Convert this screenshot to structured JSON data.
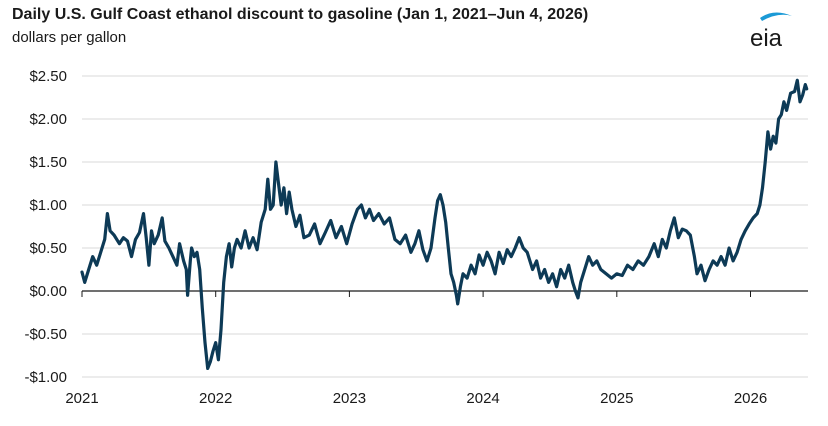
{
  "header": {
    "title": "Daily U.S. Gulf Coast ethanol discount to gasoline (Jan 1, 2021–Jun 4, 2026)",
    "subtitle": "dollars per gallon",
    "logo_text": "eia"
  },
  "colors": {
    "line": "#0d3a56",
    "grid": "#d9d9d9",
    "axis": "#1a1a1a",
    "logo_swoosh": "#1b9ad6"
  },
  "chart_data": {
    "type": "line",
    "title": "Daily U.S. Gulf Coast ethanol discount to gasoline (Jan 1, 2021–Jun 4, 2026)",
    "ylabel": "dollars per gallon",
    "xlabel": "",
    "xlim": [
      2021.0,
      2026.43
    ],
    "ylim": [
      -1.0,
      2.5
    ],
    "x_ticks": [
      2021,
      2022,
      2023,
      2024,
      2025,
      2026
    ],
    "x_tick_labels": [
      "2021",
      "2022",
      "2023",
      "2024",
      "2025",
      "2026"
    ],
    "y_ticks": [
      2.5,
      2.0,
      1.5,
      1.0,
      0.5,
      0.0,
      -0.5,
      -1.0
    ],
    "y_tick_labels": [
      "$2.50",
      "$2.00",
      "$1.50",
      "$1.00",
      "$0.50",
      "$0.00",
      "-$0.50",
      "-$1.00"
    ],
    "grid": "horizontal",
    "series": [
      {
        "points": [
          [
            2021.0,
            0.22
          ],
          [
            2021.02,
            0.1
          ],
          [
            2021.05,
            0.25
          ],
          [
            2021.08,
            0.4
          ],
          [
            2021.11,
            0.3
          ],
          [
            2021.14,
            0.45
          ],
          [
            2021.17,
            0.6
          ],
          [
            2021.19,
            0.9
          ],
          [
            2021.21,
            0.7
          ],
          [
            2021.24,
            0.65
          ],
          [
            2021.28,
            0.55
          ],
          [
            2021.31,
            0.62
          ],
          [
            2021.34,
            0.58
          ],
          [
            2021.37,
            0.4
          ],
          [
            2021.4,
            0.6
          ],
          [
            2021.43,
            0.68
          ],
          [
            2021.46,
            0.9
          ],
          [
            2021.48,
            0.62
          ],
          [
            2021.5,
            0.3
          ],
          [
            2021.52,
            0.7
          ],
          [
            2021.54,
            0.55
          ],
          [
            2021.57,
            0.65
          ],
          [
            2021.6,
            0.85
          ],
          [
            2021.62,
            0.58
          ],
          [
            2021.65,
            0.5
          ],
          [
            2021.68,
            0.4
          ],
          [
            2021.71,
            0.3
          ],
          [
            2021.73,
            0.55
          ],
          [
            2021.76,
            0.35
          ],
          [
            2021.78,
            0.25
          ],
          [
            2021.79,
            -0.05
          ],
          [
            2021.81,
            0.35
          ],
          [
            2021.82,
            0.5
          ],
          [
            2021.84,
            0.4
          ],
          [
            2021.86,
            0.45
          ],
          [
            2021.88,
            0.25
          ],
          [
            2021.9,
            -0.2
          ],
          [
            2021.92,
            -0.6
          ],
          [
            2021.94,
            -0.9
          ],
          [
            2021.96,
            -0.82
          ],
          [
            2021.98,
            -0.7
          ],
          [
            2022.0,
            -0.6
          ],
          [
            2022.02,
            -0.8
          ],
          [
            2022.04,
            -0.45
          ],
          [
            2022.06,
            0.1
          ],
          [
            2022.08,
            0.4
          ],
          [
            2022.1,
            0.55
          ],
          [
            2022.12,
            0.28
          ],
          [
            2022.14,
            0.5
          ],
          [
            2022.16,
            0.6
          ],
          [
            2022.19,
            0.5
          ],
          [
            2022.22,
            0.7
          ],
          [
            2022.25,
            0.5
          ],
          [
            2022.28,
            0.62
          ],
          [
            2022.31,
            0.48
          ],
          [
            2022.34,
            0.8
          ],
          [
            2022.37,
            0.95
          ],
          [
            2022.39,
            1.3
          ],
          [
            2022.41,
            0.95
          ],
          [
            2022.43,
            1.0
          ],
          [
            2022.45,
            1.5
          ],
          [
            2022.47,
            1.25
          ],
          [
            2022.49,
            1.0
          ],
          [
            2022.51,
            1.2
          ],
          [
            2022.53,
            0.9
          ],
          [
            2022.55,
            1.15
          ],
          [
            2022.57,
            0.95
          ],
          [
            2022.6,
            0.75
          ],
          [
            2022.63,
            0.88
          ],
          [
            2022.66,
            0.62
          ],
          [
            2022.7,
            0.65
          ],
          [
            2022.74,
            0.78
          ],
          [
            2022.78,
            0.55
          ],
          [
            2022.82,
            0.68
          ],
          [
            2022.86,
            0.82
          ],
          [
            2022.9,
            0.62
          ],
          [
            2022.94,
            0.75
          ],
          [
            2022.98,
            0.55
          ],
          [
            2023.02,
            0.78
          ],
          [
            2023.06,
            0.95
          ],
          [
            2023.09,
            1.0
          ],
          [
            2023.12,
            0.85
          ],
          [
            2023.15,
            0.95
          ],
          [
            2023.18,
            0.82
          ],
          [
            2023.22,
            0.9
          ],
          [
            2023.26,
            0.78
          ],
          [
            2023.3,
            0.85
          ],
          [
            2023.34,
            0.6
          ],
          [
            2023.38,
            0.55
          ],
          [
            2023.42,
            0.65
          ],
          [
            2023.46,
            0.45
          ],
          [
            2023.49,
            0.55
          ],
          [
            2023.52,
            0.7
          ],
          [
            2023.55,
            0.48
          ],
          [
            2023.58,
            0.35
          ],
          [
            2023.61,
            0.5
          ],
          [
            2023.64,
            0.85
          ],
          [
            2023.66,
            1.05
          ],
          [
            2023.68,
            1.12
          ],
          [
            2023.7,
            1.0
          ],
          [
            2023.72,
            0.8
          ],
          [
            2023.74,
            0.5
          ],
          [
            2023.76,
            0.2
          ],
          [
            2023.78,
            0.1
          ],
          [
            2023.8,
            -0.05
          ],
          [
            2023.81,
            -0.15
          ],
          [
            2023.83,
            0.05
          ],
          [
            2023.85,
            0.2
          ],
          [
            2023.88,
            0.15
          ],
          [
            2023.91,
            0.3
          ],
          [
            2023.94,
            0.2
          ],
          [
            2023.97,
            0.42
          ],
          [
            2024.0,
            0.3
          ],
          [
            2024.03,
            0.45
          ],
          [
            2024.06,
            0.35
          ],
          [
            2024.09,
            0.2
          ],
          [
            2024.12,
            0.45
          ],
          [
            2024.15,
            0.32
          ],
          [
            2024.18,
            0.48
          ],
          [
            2024.21,
            0.4
          ],
          [
            2024.24,
            0.5
          ],
          [
            2024.27,
            0.62
          ],
          [
            2024.3,
            0.5
          ],
          [
            2024.33,
            0.45
          ],
          [
            2024.37,
            0.25
          ],
          [
            2024.4,
            0.35
          ],
          [
            2024.43,
            0.15
          ],
          [
            2024.46,
            0.25
          ],
          [
            2024.49,
            0.1
          ],
          [
            2024.52,
            0.2
          ],
          [
            2024.55,
            0.05
          ],
          [
            2024.58,
            0.25
          ],
          [
            2024.61,
            0.15
          ],
          [
            2024.64,
            0.3
          ],
          [
            2024.67,
            0.1
          ],
          [
            2024.69,
            0.0
          ],
          [
            2024.71,
            -0.08
          ],
          [
            2024.73,
            0.1
          ],
          [
            2024.76,
            0.25
          ],
          [
            2024.79,
            0.4
          ],
          [
            2024.82,
            0.3
          ],
          [
            2024.85,
            0.35
          ],
          [
            2024.88,
            0.25
          ],
          [
            2024.92,
            0.2
          ],
          [
            2024.96,
            0.15
          ],
          [
            2025.0,
            0.2
          ],
          [
            2025.04,
            0.18
          ],
          [
            2025.08,
            0.3
          ],
          [
            2025.12,
            0.25
          ],
          [
            2025.16,
            0.35
          ],
          [
            2025.2,
            0.3
          ],
          [
            2025.24,
            0.4
          ],
          [
            2025.28,
            0.55
          ],
          [
            2025.31,
            0.4
          ],
          [
            2025.34,
            0.6
          ],
          [
            2025.37,
            0.5
          ],
          [
            2025.4,
            0.7
          ],
          [
            2025.43,
            0.85
          ],
          [
            2025.46,
            0.62
          ],
          [
            2025.49,
            0.72
          ],
          [
            2025.52,
            0.7
          ],
          [
            2025.55,
            0.65
          ],
          [
            2025.58,
            0.4
          ],
          [
            2025.6,
            0.2
          ],
          [
            2025.63,
            0.3
          ],
          [
            2025.66,
            0.12
          ],
          [
            2025.69,
            0.25
          ],
          [
            2025.72,
            0.35
          ],
          [
            2025.75,
            0.3
          ],
          [
            2025.78,
            0.4
          ],
          [
            2025.81,
            0.3
          ],
          [
            2025.84,
            0.5
          ],
          [
            2025.87,
            0.35
          ],
          [
            2025.9,
            0.45
          ],
          [
            2025.93,
            0.6
          ],
          [
            2025.96,
            0.7
          ],
          [
            2025.99,
            0.78
          ],
          [
            2026.02,
            0.85
          ],
          [
            2026.05,
            0.9
          ],
          [
            2026.07,
            1.0
          ],
          [
            2026.09,
            1.2
          ],
          [
            2026.11,
            1.5
          ],
          [
            2026.13,
            1.85
          ],
          [
            2026.15,
            1.65
          ],
          [
            2026.17,
            1.8
          ],
          [
            2026.19,
            1.72
          ],
          [
            2026.21,
            2.0
          ],
          [
            2026.23,
            2.05
          ],
          [
            2026.25,
            2.2
          ],
          [
            2026.27,
            2.1
          ],
          [
            2026.3,
            2.3
          ],
          [
            2026.33,
            2.32
          ],
          [
            2026.35,
            2.45
          ],
          [
            2026.37,
            2.2
          ],
          [
            2026.39,
            2.28
          ],
          [
            2026.41,
            2.4
          ],
          [
            2026.42,
            2.35
          ]
        ]
      }
    ]
  }
}
